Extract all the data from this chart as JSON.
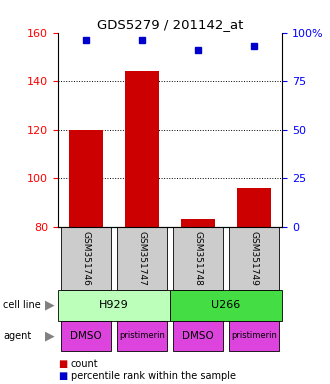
{
  "title": "GDS5279 / 201142_at",
  "samples": [
    "GSM351746",
    "GSM351747",
    "GSM351748",
    "GSM351749"
  ],
  "bar_values": [
    120,
    144,
    83,
    96
  ],
  "percentile_values": [
    96,
    96,
    91,
    93
  ],
  "bar_color": "#cc0000",
  "dot_color": "#0000cc",
  "left_ylim": [
    80,
    160
  ],
  "left_yticks": [
    80,
    100,
    120,
    140,
    160
  ],
  "right_ylim": [
    0,
    100
  ],
  "right_yticks": [
    0,
    25,
    50,
    75,
    100
  ],
  "right_yticklabels": [
    "0",
    "25",
    "50",
    "75",
    "100%"
  ],
  "cell_line_labels": [
    "H929",
    "U266"
  ],
  "cell_line_colors": [
    "#bbffbb",
    "#44dd44"
  ],
  "cell_line_spans": [
    [
      0.5,
      2.5
    ],
    [
      2.5,
      4.5
    ]
  ],
  "agent_labels": [
    "DMSO",
    "pristimerin",
    "DMSO",
    "pristimerin"
  ],
  "agent_color": "#dd44dd",
  "sample_box_color": "#cccccc",
  "legend_count_color": "#cc0000",
  "legend_dot_color": "#0000cc",
  "bar_width": 0.6,
  "grid_yticks": [
    100,
    120,
    140
  ]
}
